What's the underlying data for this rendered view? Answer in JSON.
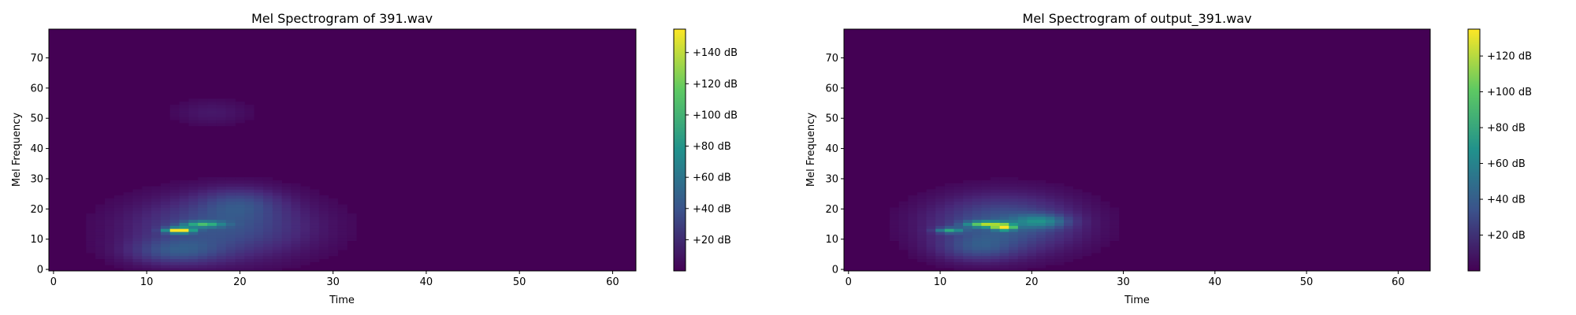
{
  "chart_data": [
    {
      "type": "heatmap",
      "title": "Mel Spectrogram of 391.wav",
      "xlabel": "Time",
      "ylabel": "Mel Frequency",
      "xlim": [
        -0.5,
        62.5
      ],
      "ylim": [
        -0.5,
        79.5
      ],
      "xticks": [
        0,
        10,
        20,
        30,
        40,
        50,
        60
      ],
      "yticks": [
        0,
        10,
        20,
        30,
        40,
        50,
        60,
        70
      ],
      "colormap": "viridis",
      "colorbar": {
        "vmin": 0,
        "vmax": 155,
        "ticks": [
          20,
          40,
          60,
          80,
          100,
          120,
          140
        ],
        "tick_labels": [
          "+20 dB",
          "+40 dB",
          "+60 dB",
          "+80 dB",
          "+100 dB",
          "+120 dB",
          "+140 dB"
        ]
      },
      "x_range": [
        0,
        62
      ],
      "y_range": [
        0,
        79
      ],
      "blobs": [
        {
          "t": 18,
          "m": 14,
          "st": 6.5,
          "sm": 7,
          "amp": 40
        },
        {
          "t": 20,
          "m": 22,
          "st": 3,
          "sm": 3.5,
          "amp": 22
        },
        {
          "t": 13,
          "m": 6,
          "st": 3.5,
          "sm": 3,
          "amp": 30
        },
        {
          "t": 17,
          "m": 52,
          "st": 3,
          "sm": 3,
          "amp": 10
        },
        {
          "t": 16,
          "m": 15,
          "st": 1.5,
          "sm": 0.7,
          "amp": 70
        },
        {
          "t": 13.5,
          "m": 13,
          "st": 1,
          "sm": 0.6,
          "amp": 150
        }
      ]
    },
    {
      "type": "heatmap",
      "title": "Mel Spectrogram of output_391.wav",
      "xlabel": "Time",
      "ylabel": "Mel Frequency",
      "xlim": [
        -0.5,
        63.5
      ],
      "ylim": [
        -0.5,
        79.5
      ],
      "xticks": [
        0,
        10,
        20,
        30,
        40,
        50,
        60
      ],
      "yticks": [
        0,
        10,
        20,
        30,
        40,
        50,
        60,
        70
      ],
      "colormap": "viridis",
      "colorbar": {
        "vmin": 0,
        "vmax": 135,
        "ticks": [
          20,
          40,
          60,
          80,
          100,
          120
        ],
        "tick_labels": [
          "+20 dB",
          "+40 dB",
          "+60 dB",
          "+80 dB",
          "+100 dB",
          "+120 dB"
        ]
      },
      "x_range": [
        0,
        63
      ],
      "y_range": [
        0,
        79
      ],
      "blobs": [
        {
          "t": 17,
          "m": 15,
          "st": 5.5,
          "sm": 6.5,
          "amp": 40
        },
        {
          "t": 21,
          "m": 16,
          "st": 2,
          "sm": 1.5,
          "amp": 40
        },
        {
          "t": 14,
          "m": 7,
          "st": 3,
          "sm": 3,
          "amp": 22
        },
        {
          "t": 15,
          "m": 15,
          "st": 1.5,
          "sm": 0.7,
          "amp": 80
        },
        {
          "t": 17,
          "m": 14,
          "st": 0.7,
          "sm": 0.6,
          "amp": 130
        },
        {
          "t": 11,
          "m": 13,
          "st": 1,
          "sm": 0.6,
          "amp": 60
        }
      ]
    }
  ]
}
